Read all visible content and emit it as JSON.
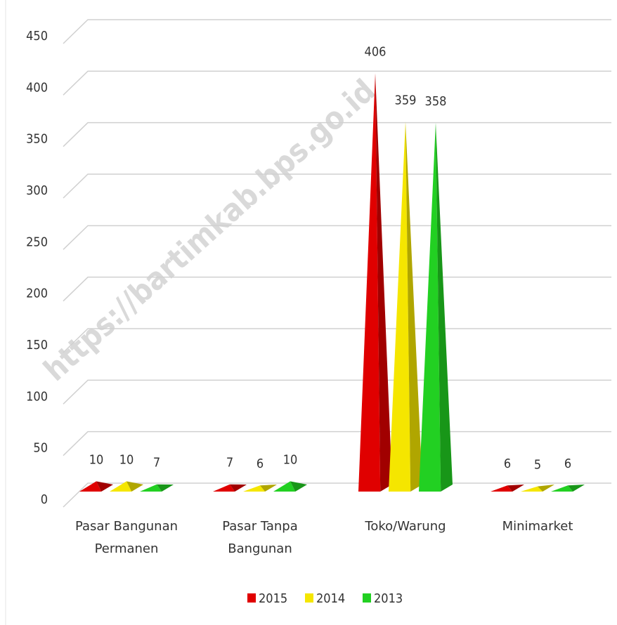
{
  "chart_data": {
    "type": "bar3d-pyramid",
    "watermark": "https://bartimkab.bps.go.id",
    "categories": [
      "Pasar Bangunan Permanen",
      "Pasar Tanpa Bangunan",
      "Toko/Warung",
      "Minimarket"
    ],
    "series": [
      {
        "name": "2015",
        "color": "#e00000",
        "values": [
          10,
          7,
          406,
          6
        ]
      },
      {
        "name": "2014",
        "color": "#f5e600",
        "values": [
          10,
          6,
          359,
          5
        ]
      },
      {
        "name": "2013",
        "color": "#22d022",
        "values": [
          7,
          10,
          358,
          6
        ]
      }
    ],
    "ylim": [
      0,
      450
    ],
    "yticks": [
      0,
      50,
      100,
      150,
      200,
      250,
      300,
      350,
      400,
      450
    ],
    "grid": true
  }
}
